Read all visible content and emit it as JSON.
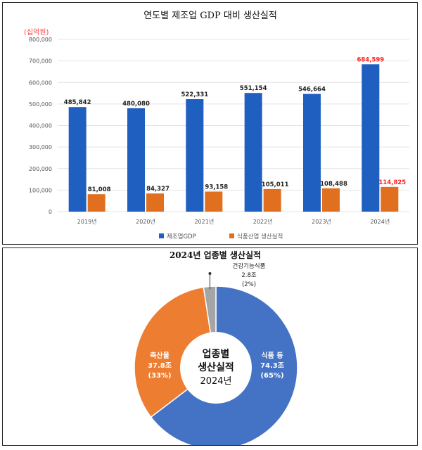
{
  "chart_data": [
    {
      "type": "bar",
      "title": "연도별 제조업 GDP 대비 생산실적",
      "unit_label": "(십억원)",
      "categories": [
        "2019년",
        "2020년",
        "2021년",
        "2022년",
        "2023년",
        "2024년"
      ],
      "series": [
        {
          "name": "제조업GDP",
          "values": [
            485842,
            480080,
            522331,
            551154,
            546664,
            684599
          ],
          "labels": [
            "485,842",
            "480,080",
            "522,331",
            "551,154",
            "546,664",
            "684,599"
          ]
        },
        {
          "name": "식품산업 생산실적",
          "values": [
            81008,
            84327,
            93158,
            105011,
            108488,
            114825
          ],
          "labels": [
            "81,008",
            "84,327",
            "93,158",
            "105,011",
            "108,488",
            "114,825"
          ]
        }
      ],
      "ylim": [
        0,
        800000
      ],
      "yticks": [
        0,
        100000,
        200000,
        300000,
        400000,
        500000,
        600000,
        700000,
        800000
      ],
      "ytick_labels": [
        "0",
        "100,000",
        "200,000",
        "300,000",
        "400,000",
        "500,000",
        "600,000",
        "700,000",
        "800,000"
      ],
      "grid": true,
      "legend_position": "bottom",
      "highlight_category": "2024년",
      "colors": {
        "gdp": "#1f5fbf",
        "food": "#e07020",
        "highlight_label": "#ff2020",
        "label": "#222222",
        "axis_text": "#555555",
        "grid": "#e4e4e4",
        "title": "#111111",
        "unit": "#ff4040"
      }
    },
    {
      "type": "pie",
      "title": "2024년 업종별 생산실적",
      "center_label": [
        "업종별",
        "생산실적",
        "2024년"
      ],
      "slices": [
        {
          "name": "식품 등",
          "value": 74.3,
          "value_label": "74.3조",
          "percent_label": "(65%)",
          "color": "#4472c4"
        },
        {
          "name": "축산물",
          "value": 37.8,
          "value_label": "37.8조",
          "percent_label": "(33%)",
          "color": "#ed7d31"
        },
        {
          "name": "건강기능식품",
          "value": 2.8,
          "value_label": "2.8조",
          "percent_label": "(2%)",
          "color": "#a5a5a5"
        }
      ]
    }
  ]
}
